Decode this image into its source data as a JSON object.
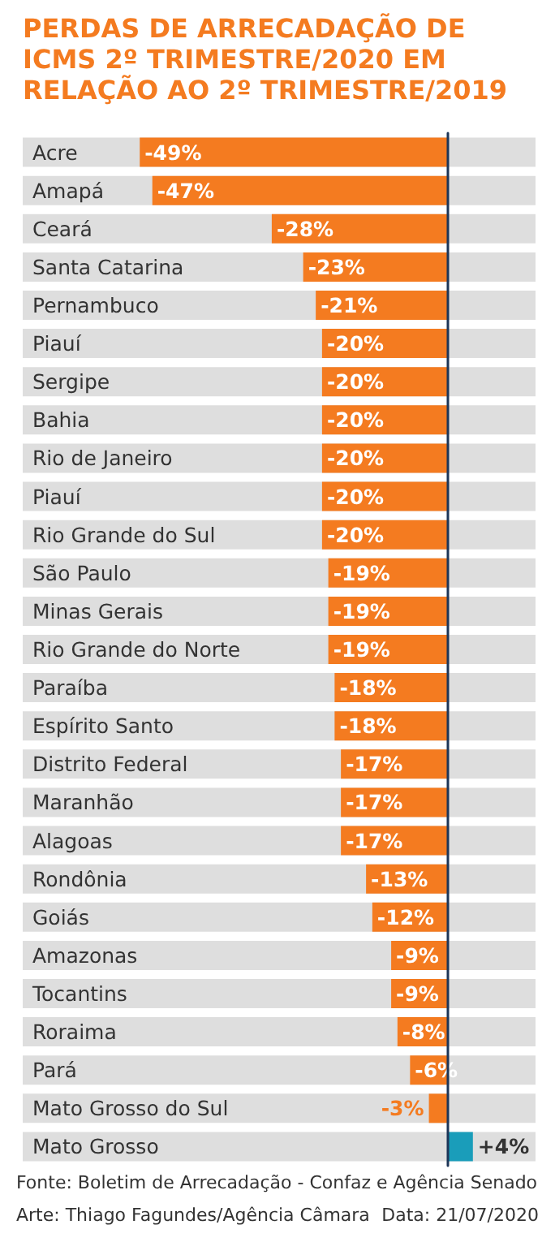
{
  "chart_data": {
    "type": "bar",
    "orientation": "horizontal",
    "title": "PERDAS DE ARRECADAÇÃO DE ICMS 2º TRIMESTRE/2020 EM RELAÇÃO AO 2º TRIMESTRE/2019",
    "categories": [
      "Acre",
      "Amapá",
      "Ceará",
      "Santa Catarina",
      "Pernambuco",
      "Piauí",
      "Sergipe",
      "Bahia",
      "Rio de Janeiro",
      "Piauí",
      "Rio Grande do Sul",
      "São Paulo",
      "Minas Gerais",
      "Rio Grande do Norte",
      "Paraíba",
      "Espírito Santo",
      "Distrito Federal",
      "Maranhão",
      "Alagoas",
      "Rondônia",
      "Goiás",
      "Amazonas",
      "Tocantins",
      "Roraima",
      "Pará",
      "Mato Grosso do Sul",
      "Mato Grosso"
    ],
    "values": [
      -49,
      -47,
      -28,
      -23,
      -21,
      -20,
      -20,
      -20,
      -20,
      -20,
      -20,
      -19,
      -19,
      -19,
      -18,
      -18,
      -17,
      -17,
      -17,
      -13,
      -12,
      -9,
      -9,
      -8,
      -6,
      -3,
      4
    ],
    "value_labels": [
      "-49%",
      "-47%",
      "-28%",
      "-23%",
      "-21%",
      "-20%",
      "-20%",
      "-20%",
      "-20%",
      "-20%",
      "-20%",
      "-19%",
      "-19%",
      "-19%",
      "-18%",
      "-18%",
      "-17%",
      "-17%",
      "-17%",
      "-13%",
      "-12%",
      "-9%",
      "-9%",
      "-8%",
      "-6%",
      "-3%",
      "+4%"
    ],
    "colors": [
      "#f47b20",
      "#f47b20",
      "#f47b20",
      "#f47b20",
      "#f47b20",
      "#f47b20",
      "#f47b20",
      "#f47b20",
      "#f47b20",
      "#f47b20",
      "#f47b20",
      "#f47b20",
      "#f47b20",
      "#f47b20",
      "#f47b20",
      "#f47b20",
      "#f47b20",
      "#f47b20",
      "#f47b20",
      "#f47b20",
      "#f47b20",
      "#f47b20",
      "#f47b20",
      "#f47b20",
      "#f47b20",
      "#f47b20",
      "#1a9dba"
    ],
    "annotations": [
      "Fonte: Boletim de Arrecadação - Confaz e Agência Senado",
      "Arte: Thiago Fagundes/Agência Câmara",
      "Data: 21/07/2020"
    ]
  }
}
